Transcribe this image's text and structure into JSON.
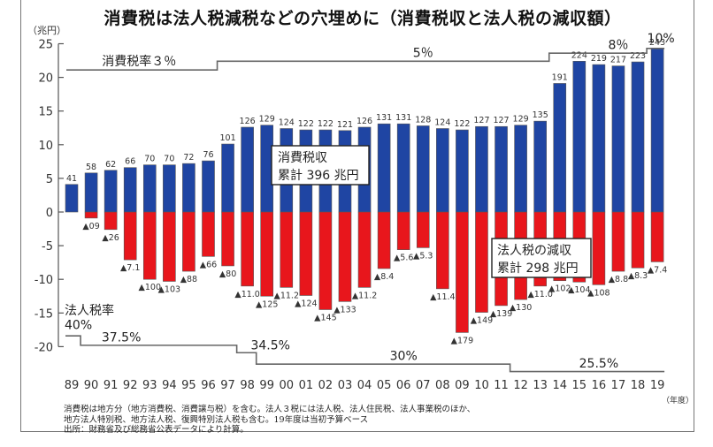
{
  "title": "消費税は法人税減税などの穴埋めに（消費税収と法人税の減収額）",
  "unit_label": "（兆円）",
  "year_unit_label": "（年度）",
  "notes": [
    "消費税は地方分（地方消費税、消費譲与税）を含む。法人３税には法人税、法人住民税、法人事業税のほか、",
    "地方法人特別税、地方法人税、復興特別法人税も含む。19年度は当初予算ベース",
    "出所：財務省及び総務省公表データにより計算。"
  ],
  "colors": {
    "consumption": "#1f45a3",
    "corporate": "#e8161c",
    "line": "#666666"
  },
  "chart_data": {
    "type": "bar",
    "title": "消費税は法人税減税などの穴埋めに（消費税収と法人税の減収額）",
    "xlabel": "（年度）",
    "ylabel": "（兆円）",
    "ylim": [
      -20,
      25
    ],
    "yticks": [
      25,
      20,
      15,
      10,
      5,
      0,
      -5,
      -10,
      -15,
      -20
    ],
    "grid": false,
    "categories": [
      "89",
      "90",
      "91",
      "92",
      "93",
      "94",
      "95",
      "96",
      "97",
      "98",
      "99",
      "00",
      "01",
      "02",
      "03",
      "04",
      "05",
      "06",
      "07",
      "08",
      "09",
      "10",
      "11",
      "12",
      "13",
      "14",
      "15",
      "16",
      "17",
      "18",
      "19"
    ],
    "series": [
      {
        "name": "消費税収",
        "values": [
          4.1,
          5.8,
          6.2,
          6.6,
          7.0,
          7.0,
          7.2,
          7.6,
          10.1,
          12.6,
          12.9,
          12.4,
          12.2,
          12.2,
          12.1,
          12.6,
          13.1,
          13.1,
          12.8,
          12.4,
          12.2,
          12.7,
          12.7,
          12.9,
          13.5,
          19.1,
          22.4,
          21.9,
          21.7,
          22.3,
          24.3
        ],
        "labels": [
          "41",
          "58",
          "62",
          "66",
          "70",
          "70",
          "72",
          "76",
          "101",
          "126",
          "129",
          "124",
          "122",
          "122",
          "121",
          "126",
          "131",
          "131",
          "128",
          "124",
          "122",
          "127",
          "127",
          "129",
          "135",
          "191",
          "224",
          "219",
          "217",
          "223",
          "243"
        ]
      },
      {
        "name": "法人税の減収",
        "values": [
          0,
          -0.9,
          -2.6,
          -7.1,
          -10.0,
          -10.3,
          -8.8,
          -6.6,
          -8.0,
          -11.0,
          -12.5,
          -11.2,
          -12.4,
          -14.5,
          -13.3,
          -11.2,
          -8.4,
          -5.6,
          -5.3,
          -11.4,
          -17.9,
          -14.9,
          -13.9,
          -13.0,
          -11.0,
          -10.2,
          -10.4,
          -10.8,
          -8.8,
          -8.3,
          -7.4
        ],
        "labels": [
          "",
          "▲09",
          "▲26",
          "▲7.1",
          "▲100",
          "▲103",
          "▲88",
          "▲66",
          "▲80",
          "▲11.0",
          "▲125",
          "▲11.2",
          "▲124",
          "▲145",
          "▲133",
          "▲11.2",
          "▲8.4",
          "▲5.6",
          "▲5.3",
          "▲11.4",
          "▲179",
          "▲149",
          "▲139",
          "▲130",
          "▲11.0",
          "▲102",
          "▲104",
          "▲108",
          "▲8.8",
          "▲8.3",
          "▲7.4"
        ]
      }
    ],
    "annotations": {
      "consumption_total": [
        "消費税収",
        "累計 396 兆円"
      ],
      "corporate_total": [
        "法人税の減収",
        "累計 298 兆円"
      ]
    },
    "consumption_tax_rate": {
      "label": "消費税率３％",
      "steps": [
        {
          "from": "89",
          "to": "96",
          "rate": "消費税率３％"
        },
        {
          "from": "97",
          "to": "13",
          "rate": "5％"
        },
        {
          "from": "14",
          "to": "18",
          "rate": "8％"
        },
        {
          "from": "19",
          "to": "19",
          "rate": "10%"
        }
      ]
    },
    "corporate_tax_rate": {
      "label": "法人税率",
      "steps": [
        {
          "from": "89",
          "to": "89",
          "rate": "40%"
        },
        {
          "from": "90",
          "to": "97",
          "rate": "37.5%"
        },
        {
          "from": "98",
          "to": "98",
          "rate": "34.5%"
        },
        {
          "from": "99",
          "to": "11",
          "rate": "30%"
        },
        {
          "from": "12",
          "to": "19",
          "rate": "25.5%"
        }
      ]
    }
  }
}
